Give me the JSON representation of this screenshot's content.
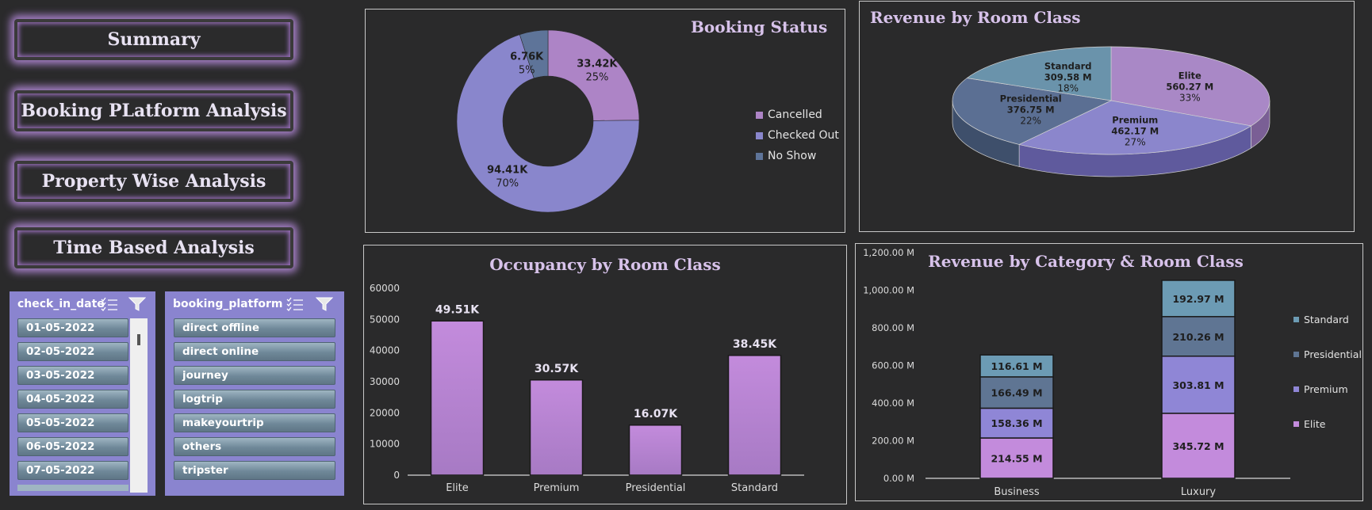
{
  "nav": {
    "summary": "Summary",
    "booking_platform": "Booking PLatform Analysis",
    "property_wise": "Property Wise Analysis",
    "time_based": "Time Based Analysis"
  },
  "slicers": {
    "check_in_date": {
      "title": "check_in_date",
      "items": [
        "01-05-2022",
        "02-05-2022",
        "03-05-2022",
        "04-05-2022",
        "05-05-2022",
        "06-05-2022",
        "07-05-2022"
      ]
    },
    "booking_platform": {
      "title": "booking_platform",
      "items": [
        "direct offline",
        "direct online",
        "journey",
        "logtrip",
        "makeyourtrip",
        "others",
        "tripster"
      ]
    }
  },
  "icons": [
    "multi-select-icon",
    "clear-filter-icon"
  ],
  "colors": {
    "accent": "#a57fc6",
    "slicer_bg": "#8a84cf",
    "cancelled": "#ad84c6",
    "checked_out": "#8986cc",
    "no_show": "#5e7499",
    "elite_pie": "#a988c6",
    "premium_pie": "#8b86cc",
    "presidential_pie": "#5b6f93",
    "standard_pie": "#6a93ab",
    "occupancy_bar": "#b985d9",
    "stack_elite": "#c38bdc",
    "stack_premium": "#8f86d6",
    "stack_presidential": "#5f7593",
    "stack_standard": "#6c9bb4"
  },
  "chart_data": [
    {
      "type": "pie",
      "variant": "donut",
      "title": "Booking Status",
      "legend_position": "right",
      "slices": [
        {
          "name": "Cancelled",
          "value": 33.42,
          "label": "33.42K",
          "pct": "25%"
        },
        {
          "name": "Checked Out",
          "value": 94.41,
          "label": "94.41K",
          "pct": "70%"
        },
        {
          "name": "No Show",
          "value": 6.76,
          "label": "6.76K",
          "pct": "5%"
        }
      ]
    },
    {
      "type": "pie",
      "variant": "3d",
      "title": "Revenue by Room Class",
      "slices": [
        {
          "name": "Elite",
          "value": 560.27,
          "label": "560.27 M",
          "pct": "33%"
        },
        {
          "name": "Premium",
          "value": 462.17,
          "label": "462.17 M",
          "pct": "27%"
        },
        {
          "name": "Presidential",
          "value": 376.75,
          "label": "376.75 M",
          "pct": "22%"
        },
        {
          "name": "Standard",
          "value": 309.58,
          "label": "309.58 M",
          "pct": "18%"
        }
      ]
    },
    {
      "type": "bar",
      "title": "Occupancy by Room Class",
      "categories": [
        "Elite",
        "Premium",
        "Presidential",
        "Standard"
      ],
      "values": [
        49510,
        30570,
        16070,
        38450
      ],
      "data_labels": [
        "49.51K",
        "30.57K",
        "16.07K",
        "38.45K"
      ],
      "ylim": [
        0,
        60000
      ],
      "yticks": [
        "0",
        "10000",
        "20000",
        "30000",
        "40000",
        "50000",
        "60000"
      ],
      "grid": false
    },
    {
      "type": "bar",
      "variant": "stacked",
      "title": "Revenue by Category & Room Class",
      "categories": [
        "Business",
        "Luxury"
      ],
      "series": [
        {
          "name": "Elite",
          "values": [
            214.55,
            345.72
          ],
          "labels": [
            "214.55 M",
            "345.72 M"
          ]
        },
        {
          "name": "Premium",
          "values": [
            158.36,
            303.81
          ],
          "labels": [
            "158.36 M",
            "303.81 M"
          ]
        },
        {
          "name": "Presidential",
          "values": [
            166.49,
            210.26
          ],
          "labels": [
            "166.49 M",
            "210.26 M"
          ]
        },
        {
          "name": "Standard",
          "values": [
            116.61,
            192.97
          ],
          "labels": [
            "116.61 M",
            "192.97 M"
          ]
        }
      ],
      "ylim": [
        0,
        1200
      ],
      "yticks": [
        "0.00 M",
        "200.00 M",
        "400.00 M",
        "600.00 M",
        "800.00 M",
        "1,000.00 M",
        "1,200.00 M"
      ],
      "legend_order": [
        "Standard",
        "Presidential",
        "Premium",
        "Elite"
      ],
      "legend_position": "right",
      "grid": false
    }
  ]
}
